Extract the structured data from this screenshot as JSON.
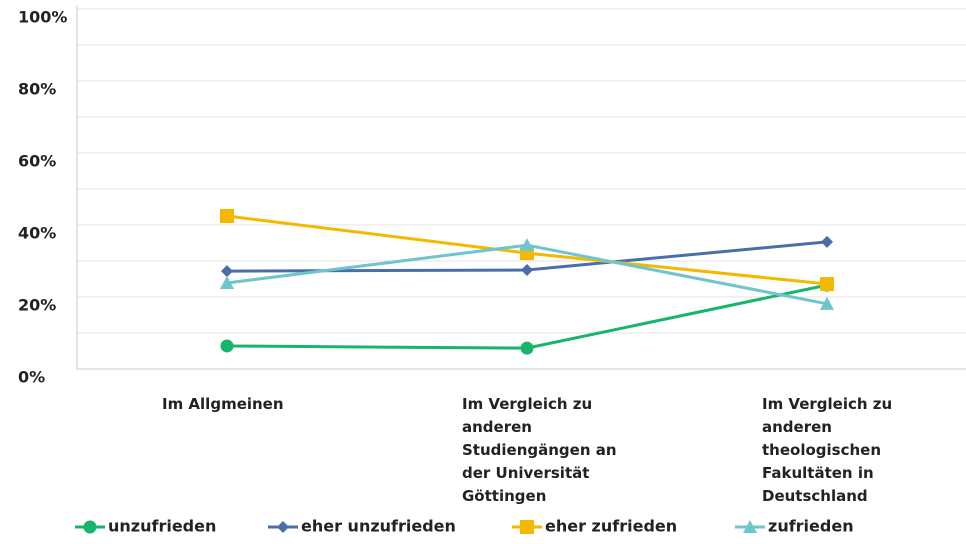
{
  "chart_data": {
    "type": "line",
    "categories": [
      "Im Allgmeinen",
      "Im Vergleich zu anderen Studiengängen an der Universität Göttingen",
      "Im Vergleich zu anderen theologischen Fakultäten in Deutschland"
    ],
    "series": [
      {
        "name": "unzufrieden",
        "color": "#16b56b",
        "marker": "circle",
        "values": [
          6.4,
          5.8,
          23.3
        ]
      },
      {
        "name": "eher unzufrieden",
        "color": "#4a6fa8",
        "marker": "diamond",
        "values": [
          27.2,
          27.5,
          35.3
        ]
      },
      {
        "name": "eher zufrieden",
        "color": "#f5b800",
        "marker": "square",
        "values": [
          42.5,
          32.2,
          23.6
        ]
      },
      {
        "name": "zufrieden",
        "color": "#6ec6cc",
        "marker": "triangle",
        "values": [
          23.9,
          34.4,
          18.1
        ]
      }
    ],
    "ylim": [
      0,
      100
    ],
    "yticks": [
      {
        "value": 0,
        "label": "0%"
      },
      {
        "value": 20,
        "label": "20%"
      },
      {
        "value": 40,
        "label": "40%"
      },
      {
        "value": 60,
        "label": "60%"
      },
      {
        "value": 80,
        "label": "80%"
      },
      {
        "value": 100,
        "label": "100%"
      }
    ],
    "minor_gridlines": [
      10,
      30,
      50,
      70,
      90
    ],
    "grid": true,
    "legend": "bottom"
  }
}
